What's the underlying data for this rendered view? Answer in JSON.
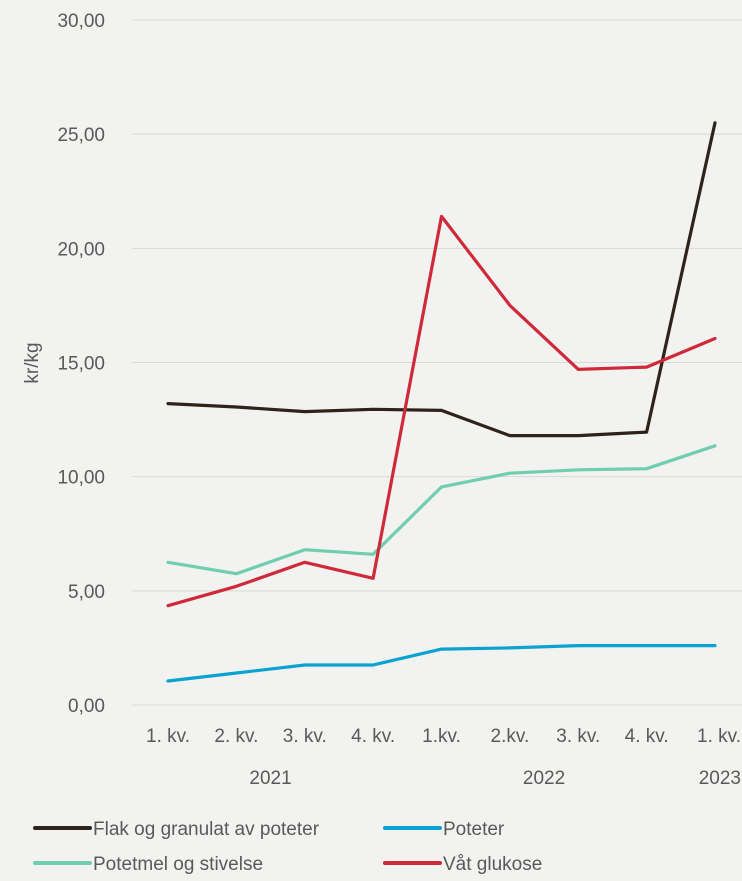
{
  "chart_data": {
    "type": "line",
    "title": "",
    "xlabel": "",
    "ylabel": "kr/kg",
    "ylim": [
      0,
      30
    ],
    "yticks": [
      "0,00",
      "5,00",
      "10,00",
      "15,00",
      "20,00",
      "25,00",
      "30,00"
    ],
    "grid": true,
    "legend_position": "bottom",
    "categories": [
      "1. kv.",
      "2. kv.",
      "3. kv.",
      "4. kv.",
      "1.kv.",
      "2.kv.",
      "3. kv.",
      "4. kv.",
      "1. kv."
    ],
    "year_groups": [
      {
        "label": "2021",
        "start": 0,
        "end": 3
      },
      {
        "label": "2022",
        "start": 4,
        "end": 7
      },
      {
        "label": "2023",
        "start": 8,
        "end": 8
      }
    ],
    "series": [
      {
        "name": "Flak og granulat av poteter",
        "color": "#2e221b",
        "values": [
          13.2,
          13.05,
          12.85,
          12.95,
          12.9,
          11.8,
          11.8,
          11.95,
          25.5
        ]
      },
      {
        "name": "Poteter",
        "color": "#0aa3d1",
        "values": [
          1.05,
          1.4,
          1.75,
          1.75,
          2.45,
          2.5,
          2.6,
          2.6,
          2.6
        ]
      },
      {
        "name": "Potetmel og stivelse",
        "color": "#6fcdb0",
        "values": [
          6.25,
          5.75,
          6.8,
          6.6,
          9.55,
          10.15,
          10.3,
          10.35,
          11.35
        ]
      },
      {
        "name": "Våt glukose",
        "color": "#cf2a3a",
        "values": [
          4.35,
          5.2,
          6.25,
          5.55,
          21.4,
          17.5,
          14.7,
          14.8,
          16.05
        ]
      }
    ]
  }
}
